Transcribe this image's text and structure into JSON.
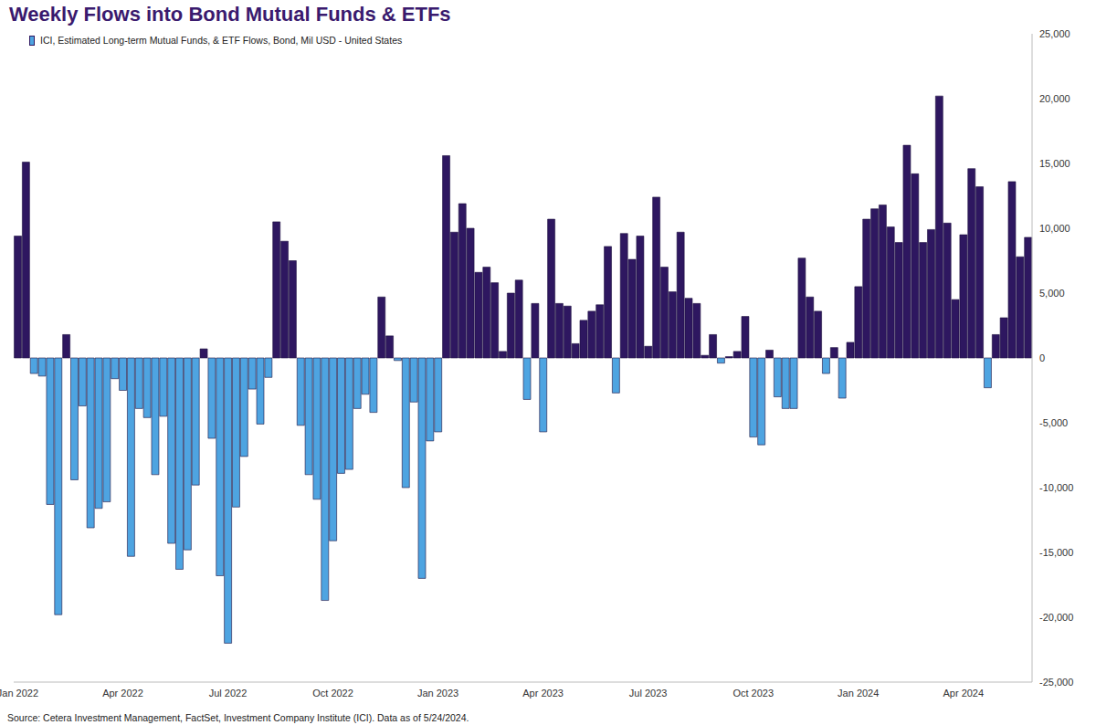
{
  "chart_data": {
    "type": "bar",
    "title": "Weekly Flows into Bond Mutual Funds & ETFs",
    "annotations": [
      "Source: Cetera Investment Management, FactSet, Investment Company Institute (ICI). Data as of 5/24/2024."
    ],
    "legend": "top-left",
    "grid": false,
    "categories": [
      "Jan 2022",
      null,
      null,
      null,
      null,
      null,
      null,
      null,
      null,
      null,
      null,
      null,
      null,
      "Apr 2022",
      null,
      null,
      null,
      null,
      null,
      null,
      null,
      null,
      null,
      null,
      null,
      null,
      "Jul 2022",
      null,
      null,
      null,
      null,
      null,
      null,
      null,
      null,
      null,
      null,
      null,
      null,
      "Oct 2022",
      null,
      null,
      null,
      null,
      null,
      null,
      null,
      null,
      null,
      null,
      null,
      null,
      "Jan 2023",
      null,
      null,
      null,
      null,
      null,
      null,
      null,
      null,
      null,
      null,
      null,
      null,
      "Apr 2023",
      null,
      null,
      null,
      null,
      null,
      null,
      null,
      null,
      null,
      null,
      null,
      null,
      "Jul 2023",
      null,
      null,
      null,
      null,
      null,
      null,
      null,
      null,
      null,
      null,
      null,
      null,
      "Oct 2023",
      null,
      null,
      null,
      null,
      null,
      null,
      null,
      null,
      null,
      null,
      null,
      null,
      "Jan 2024",
      null,
      null,
      null,
      null,
      null,
      null,
      null,
      null,
      null,
      null,
      null,
      null,
      "Apr 2024",
      null,
      null,
      null,
      null,
      null,
      null,
      null,
      null
    ],
    "series": [
      {
        "name": "ICI, Estimated Long-term Mutual Funds, & ETF Flows, Bond, Mil USD - United States",
        "values": [
          9400,
          15100,
          -1200,
          -1400,
          -11300,
          -19800,
          1800,
          -9400,
          -3700,
          -13100,
          -11600,
          -11100,
          -1600,
          -2500,
          -15300,
          -3900,
          -4600,
          -9000,
          -4500,
          -14300,
          -16300,
          -14800,
          -9800,
          700,
          -6200,
          -16800,
          -22000,
          -11500,
          -7600,
          -2400,
          -5100,
          -1500,
          10500,
          9000,
          7500,
          -5200,
          -9000,
          -10900,
          -18700,
          -14100,
          -8900,
          -8600,
          -3900,
          -2800,
          -4200,
          4700,
          1700,
          -200,
          -10000,
          -3400,
          -17000,
          -6400,
          -5700,
          15600,
          9700,
          11900,
          10000,
          6600,
          7000,
          5800,
          500,
          5000,
          6000,
          -3200,
          4200,
          -5700,
          10700,
          4200,
          4000,
          1100,
          2900,
          3600,
          4100,
          8600,
          -2700,
          9600,
          7600,
          9400,
          900,
          12400,
          7000,
          5100,
          9700,
          4600,
          4200,
          200,
          1800,
          -400,
          100,
          500,
          3200,
          -6100,
          -6700,
          600,
          -3000,
          -3900,
          -3900,
          7700,
          4700,
          3600,
          -1200,
          800,
          -3100,
          1200,
          5500,
          10700,
          11500,
          11800,
          10100,
          8900,
          16400,
          14200,
          8900,
          9900,
          20200,
          10400,
          4500,
          9500,
          14600,
          13200,
          -2300,
          1800,
          3100,
          13600,
          7800,
          9300
        ],
        "colors": [
          "#2e1760",
          "#2e1760",
          "#4ea4e1",
          "#4ea4e1",
          "#4ea4e1",
          "#4ea4e1",
          "#2e1760",
          "#4ea4e1",
          "#4ea4e1",
          "#4ea4e1",
          "#4ea4e1",
          "#4ea4e1",
          "#4ea4e1",
          "#4ea4e1",
          "#4ea4e1",
          "#4ea4e1",
          "#4ea4e1",
          "#4ea4e1",
          "#4ea4e1",
          "#4ea4e1",
          "#4ea4e1",
          "#4ea4e1",
          "#4ea4e1",
          "#2e1760",
          "#4ea4e1",
          "#4ea4e1",
          "#4ea4e1",
          "#4ea4e1",
          "#4ea4e1",
          "#4ea4e1",
          "#4ea4e1",
          "#4ea4e1",
          "#2e1760",
          "#2e1760",
          "#2e1760",
          "#4ea4e1",
          "#4ea4e1",
          "#4ea4e1",
          "#4ea4e1",
          "#4ea4e1",
          "#4ea4e1",
          "#4ea4e1",
          "#4ea4e1",
          "#4ea4e1",
          "#4ea4e1",
          "#2e1760",
          "#2e1760",
          "#4ea4e1",
          "#4ea4e1",
          "#4ea4e1",
          "#4ea4e1",
          "#4ea4e1",
          "#4ea4e1",
          "#2e1760",
          "#2e1760",
          "#2e1760",
          "#2e1760",
          "#2e1760",
          "#2e1760",
          "#2e1760",
          "#2e1760",
          "#2e1760",
          "#2e1760",
          "#4ea4e1",
          "#2e1760",
          "#4ea4e1",
          "#2e1760",
          "#2e1760",
          "#2e1760",
          "#2e1760",
          "#2e1760",
          "#2e1760",
          "#2e1760",
          "#2e1760",
          "#4ea4e1",
          "#2e1760",
          "#2e1760",
          "#2e1760",
          "#2e1760",
          "#2e1760",
          "#2e1760",
          "#2e1760",
          "#2e1760",
          "#2e1760",
          "#2e1760",
          "#2e1760",
          "#2e1760",
          "#4ea4e1",
          "#2e1760",
          "#2e1760",
          "#2e1760",
          "#4ea4e1",
          "#4ea4e1",
          "#2e1760",
          "#4ea4e1",
          "#4ea4e1",
          "#4ea4e1",
          "#2e1760",
          "#2e1760",
          "#2e1760",
          "#4ea4e1",
          "#2e1760",
          "#4ea4e1",
          "#2e1760",
          "#2e1760",
          "#2e1760",
          "#2e1760",
          "#2e1760",
          "#2e1760",
          "#2e1760",
          "#2e1760",
          "#2e1760",
          "#2e1760",
          "#2e1760",
          "#2e1760",
          "#2e1760",
          "#2e1760",
          "#2e1760",
          "#2e1760",
          "#2e1760",
          "#4ea4e1",
          "#2e1760",
          "#2e1760",
          "#2e1760",
          "#2e1760",
          "#2e1760"
        ]
      }
    ],
    "ylim": [
      -25000,
      25000
    ],
    "yticks": [
      {
        "value": -25000,
        "label": "-25,000"
      },
      {
        "value": -20000,
        "label": "-20,000"
      },
      {
        "value": -15000,
        "label": "-15,000"
      },
      {
        "value": -10000,
        "label": "-10,000"
      },
      {
        "value": -5000,
        "label": "-5,000"
      },
      0,
      {
        "value": 5000,
        "label": "5,000"
      },
      {
        "value": 10000,
        "label": "10,000"
      },
      {
        "value": 15000,
        "label": "15,000"
      },
      {
        "value": 20000,
        "label": "20,000"
      },
      {
        "value": 25000,
        "label": "25,000"
      }
    ]
  }
}
